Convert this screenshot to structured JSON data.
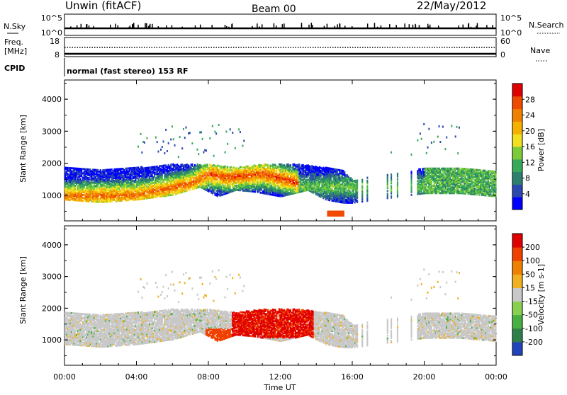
{
  "header": {
    "station": "Unwin (fitACF)",
    "beam": "Beam 00",
    "date": "22/May/2012"
  },
  "strip_labels": {
    "nsky": "N.Sky",
    "nsearch": "N.Search",
    "freq": "Freq.",
    "freq_unit": "[MHz]",
    "nave": "Nave",
    "cpid": "CPID"
  },
  "strip_ticks": {
    "nsky_top": "10^5",
    "nsky_bottom": "10^0",
    "nsearch_top": "10^5",
    "nsearch_bottom": "10^0",
    "freq_top": "18",
    "freq_bottom": "8",
    "nave_top": "60",
    "nave_bottom": "0"
  },
  "cpid_text": "normal (fast stereo) 153 RF",
  "chart_data": [
    {
      "type": "heatmap",
      "parameter": "Power",
      "ylabel": "Slant Range [km]",
      "ylim": [
        200,
        4600
      ],
      "yticks": [
        "1000",
        "2000",
        "3000",
        "4000"
      ],
      "colorbar_label": "Power [dB]",
      "colorbar_ticks": [
        "4",
        "8",
        "12",
        "16",
        "20",
        "24",
        "28"
      ],
      "colorbar_colors": [
        "#0000ff",
        "#2a48b0",
        "#2f7f6e",
        "#38a85a",
        "#7ccc3a",
        "#f0e020",
        "#f5b000",
        "#f08000",
        "#f04a00",
        "#e00000"
      ],
      "colorbar_range": [
        0,
        32
      ]
    },
    {
      "type": "heatmap",
      "parameter": "Velocity",
      "ylabel": "Slant Range [km]",
      "ylim": [
        200,
        4600
      ],
      "yticks": [
        "1000",
        "2000",
        "3000",
        "4000"
      ],
      "colorbar_label": "Velocity [m s-1]",
      "colorbar_ticks": [
        "200",
        "100",
        "50",
        "15",
        "-15",
        "-50",
        "-100",
        "-200"
      ],
      "colorbar_colors": [
        "#2244bb",
        "#2e7f4a",
        "#48b040",
        "#88d050",
        "#c8c8c8",
        "#f0b020",
        "#f08000",
        "#f04000",
        "#e00000"
      ]
    }
  ],
  "xaxis": {
    "label": "Time UT",
    "ticks": [
      "00:00",
      "04:00",
      "08:00",
      "12:00",
      "16:00",
      "20:00",
      "00:00"
    ],
    "range_hours": [
      0,
      24
    ]
  }
}
